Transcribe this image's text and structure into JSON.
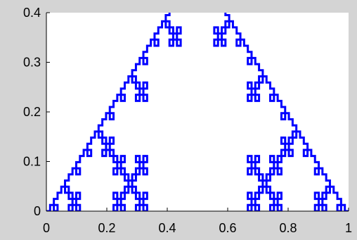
{
  "chart_data": {
    "type": "line",
    "title": "",
    "xlabel": "",
    "ylabel": "",
    "xlim": [
      0,
      1
    ],
    "ylim": [
      0,
      0.4
    ],
    "grid": false,
    "legend": "none",
    "xticks": [
      0,
      0.2,
      0.4,
      0.6,
      0.8,
      1
    ],
    "xtick_labels": [
      "0",
      "0.2",
      "0.4",
      "0.6",
      "0.8",
      "1"
    ],
    "yticks": [
      0,
      0.1,
      0.2,
      0.3,
      0.4
    ],
    "ytick_labels": [
      "0",
      "0.1",
      "0.2",
      "0.3",
      "0.4"
    ],
    "curve": "Koch snowflake (generator 1/3-width square bump)",
    "series": [
      {
        "color": "#0000ff",
        "x": [
          0,
          0.333333,
          0.333333,
          0.666667,
          0.666667,
          1
        ],
        "y": [
          0,
          0,
          0.333333,
          0.333333,
          0,
          0
        ],
        "iterations": 4
      }
    ]
  },
  "colors": {
    "background": "#d4d4d4",
    "plot_area": "#ffffff",
    "series": "#0000ff",
    "axes": "#000000"
  }
}
